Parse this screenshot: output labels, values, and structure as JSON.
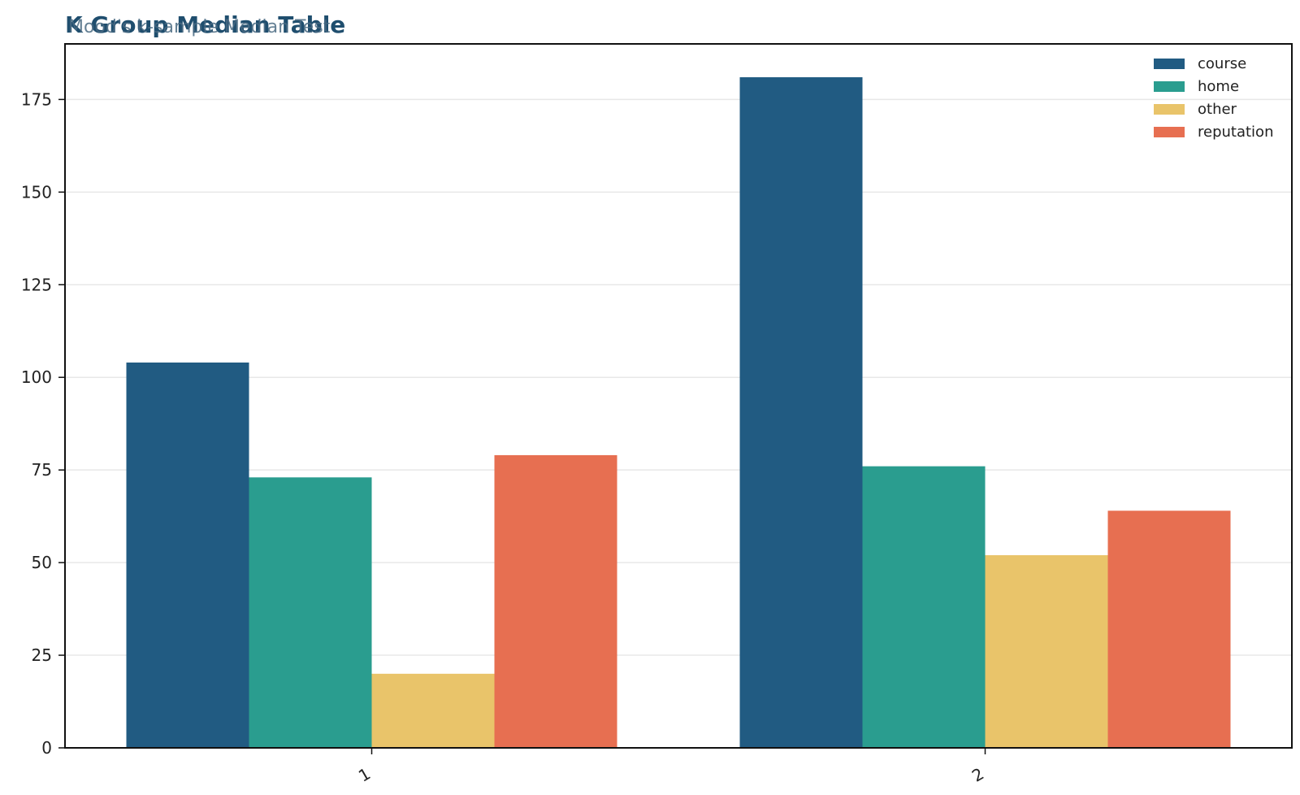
{
  "chart_data": {
    "type": "bar",
    "title": "K Group Median Table",
    "subtitle": "Mood's k-sample Median Test",
    "xlabel": "",
    "ylabel": "",
    "categories": [
      "1",
      "2"
    ],
    "series": [
      {
        "name": "course",
        "values": [
          104,
          181
        ],
        "color": "#215b82"
      },
      {
        "name": "home",
        "values": [
          73,
          76
        ],
        "color": "#2a9d8f"
      },
      {
        "name": "other",
        "values": [
          20,
          52
        ],
        "color": "#e9c46a"
      },
      {
        "name": "reputation",
        "values": [
          79,
          64
        ],
        "color": "#e76f51"
      }
    ],
    "ylim": [
      0,
      190
    ],
    "yticks": [
      "0",
      "25",
      "50",
      "75",
      "100",
      "125",
      "150",
      "175"
    ],
    "grid": true,
    "legend_position": "top-right"
  }
}
